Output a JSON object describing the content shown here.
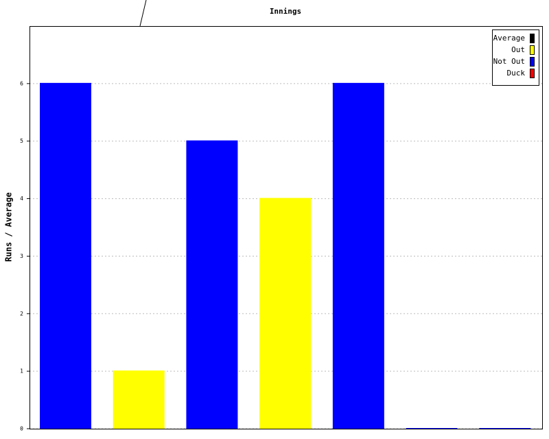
{
  "chart_data": {
    "type": "bar",
    "title": "Innings",
    "y_label": "Runs / Average",
    "categories": [
      null,
      null,
      null,
      null,
      null,
      null,
      null
    ],
    "values": [
      6,
      1,
      5,
      4,
      6,
      0,
      0
    ],
    "colors": [
      "#0000ff",
      "#ffff00",
      "#0000ff",
      "#ffff00",
      "#0000ff",
      "#0000ff",
      "#0000ff"
    ],
    "ylim": [
      0,
      7
    ],
    "yticks": [
      0,
      1,
      2,
      3,
      4,
      5,
      6
    ],
    "grid": true,
    "legend_position": "top-right",
    "legend": [
      {
        "name": "Average",
        "color": "#000000"
      },
      {
        "name": "Out",
        "color": "#ffff00"
      },
      {
        "name": "Not Out",
        "color": "#0000ff"
      },
      {
        "name": "Duck",
        "color": "#ff0000"
      }
    ]
  }
}
